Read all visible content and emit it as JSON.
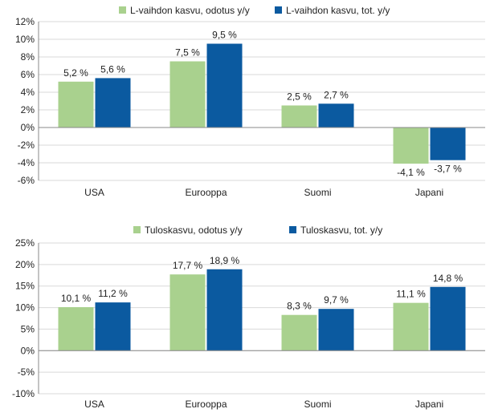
{
  "colors": {
    "expected": "#a9d18e",
    "actual": "#0b5aa0",
    "grid": "#d9d9d9",
    "axis": "#888888",
    "text": "#222222"
  },
  "chart_data": [
    {
      "type": "bar",
      "categories": [
        "USA",
        "Eurooppa",
        "Suomi",
        "Japani"
      ],
      "series": [
        {
          "name": "L-vaihdon kasvu, odotus y/y",
          "values": [
            5.2,
            7.5,
            2.5,
            -4.1
          ],
          "labels": [
            "5,2 %",
            "7,5 %",
            "2,5 %",
            "-4,1 %"
          ]
        },
        {
          "name": "L-vaihdon kasvu, tot. y/y",
          "values": [
            5.6,
            9.5,
            2.7,
            -3.7
          ],
          "labels": [
            "5,6 %",
            "9,5 %",
            "2,7 %",
            "-3,7 %"
          ]
        }
      ],
      "ylim": [
        -6,
        12
      ],
      "yticks": [
        -6,
        -4,
        -2,
        0,
        2,
        4,
        6,
        8,
        10,
        12
      ],
      "ytick_labels": [
        "-6%",
        "-4%",
        "-2%",
        "0%",
        "2%",
        "4%",
        "6%",
        "8%",
        "10%",
        "12%"
      ],
      "grid": true,
      "legend": "top-center"
    },
    {
      "type": "bar",
      "categories": [
        "USA",
        "Eurooppa",
        "Suomi",
        "Japani"
      ],
      "series": [
        {
          "name": "Tuloskasvu, odotus y/y",
          "values": [
            10.1,
            17.7,
            8.3,
            11.1
          ],
          "labels": [
            "10,1 %",
            "17,7 %",
            "8,3 %",
            "11,1 %"
          ]
        },
        {
          "name": "Tuloskasvu, tot. y/y",
          "values": [
            11.2,
            18.9,
            9.7,
            14.8
          ],
          "labels": [
            "11,2 %",
            "18,9 %",
            "9,7 %",
            "14,8 %"
          ]
        }
      ],
      "ylim": [
        -10,
        25
      ],
      "yticks": [
        -10,
        -5,
        0,
        5,
        10,
        15,
        20,
        25
      ],
      "ytick_labels": [
        "-10%",
        "-5%",
        "0%",
        "5%",
        "10%",
        "15%",
        "20%",
        "25%"
      ],
      "grid": true,
      "legend": "top-center"
    }
  ]
}
